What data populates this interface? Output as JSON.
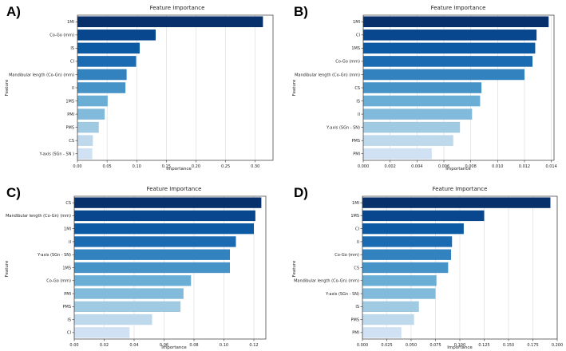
{
  "chart_data": [
    {
      "type": "bar",
      "orientation": "horizontal",
      "panel_label": "A)",
      "title": "Feature Importance",
      "xlabel": "Importance",
      "ylabel": "Feature",
      "xlim": [
        0,
        0.33
      ],
      "xticks": [
        "0.00",
        "0.05",
        "0.10",
        "0.15",
        "0.20",
        "0.25",
        "0.30"
      ],
      "grid": "vertical",
      "categories": [
        "1MI",
        "Co-Go (mm)",
        "IS",
        "CI",
        "Mandibular length (Co-Gn) (mm)",
        "II",
        "1MS",
        "PMI",
        "PMS",
        "CS",
        "Y-axis (SGn - SN )"
      ],
      "values": [
        0.313,
        0.132,
        0.105,
        0.099,
        0.083,
        0.081,
        0.051,
        0.046,
        0.036,
        0.026,
        0.025
      ]
    },
    {
      "type": "bar",
      "orientation": "horizontal",
      "panel_label": "B)",
      "title": "Feature Importance",
      "xlabel": "Importance",
      "ylabel": "Feature",
      "xlim": [
        0,
        0.0142
      ],
      "xticks": [
        "0.000",
        "0.002",
        "0.004",
        "0.006",
        "0.008",
        "0.010",
        "0.012",
        "0.014"
      ],
      "grid": "vertical",
      "categories": [
        "1MI",
        "CI",
        "1MS",
        "Co-Go (mm)",
        "Mandibular length (Co-Gn) (mm)",
        "CS",
        "IS",
        "II",
        "Y-axis (SGn - SN)",
        "PMS",
        "PMI"
      ],
      "values": [
        0.0138,
        0.0129,
        0.0128,
        0.0126,
        0.012,
        0.0088,
        0.0087,
        0.0081,
        0.0072,
        0.0067,
        0.0051
      ]
    },
    {
      "type": "bar",
      "orientation": "horizontal",
      "panel_label": "C)",
      "title": "Feature Importance",
      "xlabel": "Importance",
      "ylabel": "Feature",
      "xlim": [
        0,
        0.128
      ],
      "xticks": [
        "0.00",
        "0.02",
        "0.04",
        "0.06",
        "0.08",
        "0.10",
        "0.12"
      ],
      "grid": "vertical",
      "categories": [
        "CS",
        "Mandibular length (Co-Gn) (mm)",
        "1MI",
        "II",
        "Y-axis (SGn - SN)",
        "1MS",
        "Co-Go (mm)",
        "PMI",
        "PMS",
        "IS",
        "CI"
      ],
      "values": [
        0.125,
        0.121,
        0.12,
        0.108,
        0.104,
        0.104,
        0.078,
        0.073,
        0.071,
        0.052,
        0.037
      ]
    },
    {
      "type": "bar",
      "orientation": "horizontal",
      "panel_label": "D)",
      "title": "Feature Importance",
      "xlabel": "Importance",
      "ylabel": "Feature",
      "xlim": [
        0,
        0.2
      ],
      "xticks": [
        "0.000",
        "0.025",
        "0.050",
        "0.075",
        "0.100",
        "0.125",
        "0.150",
        "0.175",
        "0.200"
      ],
      "grid": "vertical",
      "categories": [
        "1MI",
        "1MS",
        "CI",
        "II",
        "Co-Go (mm)",
        "CS",
        "Mandibular length (Co-Gn) (mm)",
        "Y-axis (SGn - SN)",
        "IS",
        "PMS",
        "PMI"
      ],
      "values": [
        0.193,
        0.125,
        0.104,
        0.092,
        0.091,
        0.088,
        0.076,
        0.075,
        0.058,
        0.053,
        0.04
      ]
    }
  ],
  "colors": [
    "#08306b",
    "#08468e",
    "#0c5aa3",
    "#1a6bb2",
    "#3282bf",
    "#4693c8",
    "#6aaed6",
    "#82badb",
    "#a0cae2",
    "#bed9ec",
    "#cfe1f2"
  ],
  "grid_color": "#d8d8d8"
}
